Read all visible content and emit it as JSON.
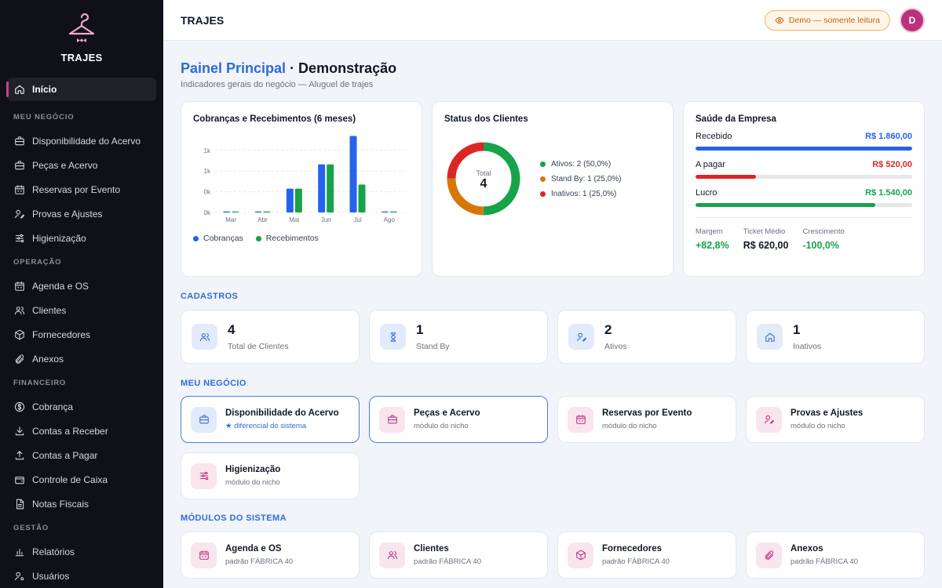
{
  "brand": {
    "name": "TRAJES",
    "icon": "hanger-icon"
  },
  "sidebar": {
    "home": {
      "label": "Início",
      "icon": "home-icon"
    },
    "sections": [
      {
        "title": "MEU NEGÓCIO",
        "items": [
          {
            "label": "Disponibilidade do Acervo",
            "icon": "briefcase-icon"
          },
          {
            "label": "Peças e Acervo",
            "icon": "briefcase-icon"
          },
          {
            "label": "Reservas por Evento",
            "icon": "calendar-icon"
          },
          {
            "label": "Provas e Ajustes",
            "icon": "user-edit-icon"
          },
          {
            "label": "Higienização",
            "icon": "sliders-icon"
          }
        ]
      },
      {
        "title": "OPERAÇÃO",
        "items": [
          {
            "label": "Agenda e OS",
            "icon": "calendar-icon"
          },
          {
            "label": "Clientes",
            "icon": "users-icon"
          },
          {
            "label": "Fornecedores",
            "icon": "box-icon"
          },
          {
            "label": "Anexos",
            "icon": "paperclip-icon"
          }
        ]
      },
      {
        "title": "FINANCEIRO",
        "items": [
          {
            "label": "Cobrança",
            "icon": "dollar-icon"
          },
          {
            "label": "Contas a Receber",
            "icon": "download-icon"
          },
          {
            "label": "Contas a Pagar",
            "icon": "upload-icon"
          },
          {
            "label": "Controle de Caixa",
            "icon": "wallet-icon"
          },
          {
            "label": "Notas Fiscais",
            "icon": "file-icon"
          }
        ]
      },
      {
        "title": "GESTÃO",
        "items": [
          {
            "label": "Relatórios",
            "icon": "bar-chart-icon"
          },
          {
            "label": "Usuários",
            "icon": "user-gear-icon"
          }
        ]
      }
    ]
  },
  "topbar": {
    "title": "TRAJES",
    "demo_label": "Demo — somente leitura",
    "avatar_letter": "D"
  },
  "page": {
    "title_highlight": "Painel Principal",
    "title_rest": " · Demonstração",
    "subtitle": "Indicadores gerais do negócio — Aluguel de trajes"
  },
  "charges_card": {
    "title": "Cobranças e Recebimentos (6 meses)"
  },
  "status_card": {
    "title": "Status dos Clientes",
    "total_label": "Total",
    "total_value": "4",
    "legend": [
      {
        "label": "Ativos: 2 (50,0%)",
        "color": "#16a34a"
      },
      {
        "label": "Stand By: 1 (25,0%)",
        "color": "#d97706"
      },
      {
        "label": "Inativos: 1 (25,0%)",
        "color": "#dc2626"
      }
    ]
  },
  "health_card": {
    "title": "Saúde da Empresa",
    "rows": [
      {
        "label": "Recebido",
        "value": "R$ 1.860,00",
        "color": "#2563eb",
        "fill_pct": 100
      },
      {
        "label": "A pagar",
        "value": "R$ 520,00",
        "color": "#dc2626",
        "fill_pct": 28
      },
      {
        "label": "Lucro",
        "value": "R$ 1.540,00",
        "color": "#16a34a",
        "fill_pct": 83
      }
    ],
    "metrics": [
      {
        "label": "Margem",
        "value": "+82,8%",
        "color": "#16a34a"
      },
      {
        "label": "Ticket Médio",
        "value": "R$ 620,00",
        "color": "#111827"
      },
      {
        "label": "Crescimento",
        "value": "-100,0%",
        "color": "#16a34a"
      }
    ]
  },
  "cadastros": {
    "title": "CADASTROS",
    "items": [
      {
        "value": "4",
        "label": "Total de Clientes",
        "icon": "users-icon"
      },
      {
        "value": "1",
        "label": "Stand By",
        "icon": "hourglass-icon"
      },
      {
        "value": "2",
        "label": "Ativos",
        "icon": "user-edit-icon"
      },
      {
        "value": "1",
        "label": "Inativos",
        "icon": "home-icon"
      }
    ]
  },
  "meu_negocio": {
    "title": "MEU NEGÓCIO",
    "items": [
      {
        "name": "Disponibilidade do Acervo",
        "sub": "★ diferencial do sistema",
        "icon": "briefcase-icon"
      },
      {
        "name": "Peças e Acervo",
        "sub": "módulo do nicho",
        "icon": "briefcase-icon"
      },
      {
        "name": "Reservas por Evento",
        "sub": "módulo do nicho",
        "icon": "calendar-icon"
      },
      {
        "name": "Provas e Ajustes",
        "sub": "módulo do nicho",
        "icon": "user-edit-icon"
      },
      {
        "name": "Higienização",
        "sub": "módulo do nicho",
        "icon": "sliders-icon"
      }
    ]
  },
  "modulos": {
    "title": "MÓDULOS DO SISTEMA",
    "items": [
      {
        "name": "Agenda e OS",
        "sub": "padrão FÁBRICA 40",
        "icon": "calendar-icon"
      },
      {
        "name": "Clientes",
        "sub": "padrão FÁBRICA 40",
        "icon": "users-icon"
      },
      {
        "name": "Fornecedores",
        "sub": "padrão FÁBRICA 40",
        "icon": "box-icon"
      },
      {
        "name": "Anexos",
        "sub": "padrão FÁBRICA 40",
        "icon": "paperclip-icon"
      }
    ]
  },
  "chart_data": {
    "type": "bar",
    "title": "Cobranças e Recebimentos (6 meses)",
    "categories": [
      "Mar",
      "Abr",
      "Mai",
      "Jun",
      "Jul",
      "Ago"
    ],
    "series": [
      {
        "name": "Cobranças",
        "color": "#2563eb",
        "values": [
          0,
          0,
          460,
          930,
          1480,
          0
        ]
      },
      {
        "name": "Recebimentos",
        "color": "#16a34a",
        "values": [
          0,
          0,
          460,
          930,
          540,
          0
        ]
      }
    ],
    "ytick_labels": [
      "0k",
      "0k",
      "1k",
      "1k"
    ],
    "ylim": [
      0,
      1500
    ],
    "grid": true,
    "legend_position": "bottom-left"
  }
}
